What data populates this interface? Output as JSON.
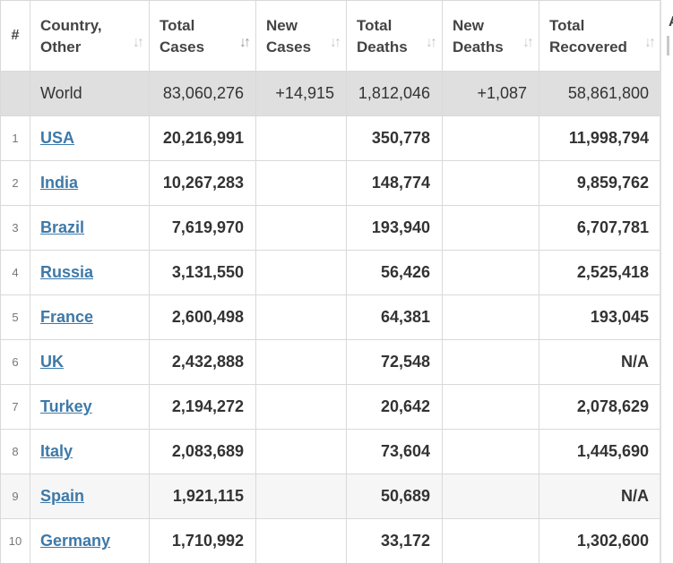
{
  "headers": {
    "num": "#",
    "country": [
      "Country,",
      "Other"
    ],
    "total_cases": [
      "Total",
      "Cases"
    ],
    "new_cases": [
      "New",
      "Cases"
    ],
    "total_deaths": [
      "Total",
      "Deaths"
    ],
    "new_deaths": [
      "New",
      "Deaths"
    ],
    "total_recovered": [
      "Total",
      "Recovered"
    ],
    "next_col_initial": "A"
  },
  "sort_icons": {
    "inactive": "sort-arrows-icon",
    "active": "sort-desc-icon",
    "active_column": "total_cases"
  },
  "world": {
    "country": "World",
    "total_cases": "83,060,276",
    "new_cases": "+14,915",
    "total_deaths": "1,812,046",
    "new_deaths": "+1,087",
    "total_recovered": "58,861,800"
  },
  "rows": [
    {
      "num": "1",
      "country": "USA",
      "total_cases": "20,216,991",
      "new_cases": "",
      "total_deaths": "350,778",
      "new_deaths": "",
      "total_recovered": "11,998,794"
    },
    {
      "num": "2",
      "country": "India",
      "total_cases": "10,267,283",
      "new_cases": "",
      "total_deaths": "148,774",
      "new_deaths": "",
      "total_recovered": "9,859,762"
    },
    {
      "num": "3",
      "country": "Brazil",
      "total_cases": "7,619,970",
      "new_cases": "",
      "total_deaths": "193,940",
      "new_deaths": "",
      "total_recovered": "6,707,781"
    },
    {
      "num": "4",
      "country": "Russia",
      "total_cases": "3,131,550",
      "new_cases": "",
      "total_deaths": "56,426",
      "new_deaths": "",
      "total_recovered": "2,525,418"
    },
    {
      "num": "5",
      "country": "France",
      "total_cases": "2,600,498",
      "new_cases": "",
      "total_deaths": "64,381",
      "new_deaths": "",
      "total_recovered": "193,045"
    },
    {
      "num": "6",
      "country": "UK",
      "total_cases": "2,432,888",
      "new_cases": "",
      "total_deaths": "72,548",
      "new_deaths": "",
      "total_recovered": "N/A"
    },
    {
      "num": "7",
      "country": "Turkey",
      "total_cases": "2,194,272",
      "new_cases": "",
      "total_deaths": "20,642",
      "new_deaths": "",
      "total_recovered": "2,078,629"
    },
    {
      "num": "8",
      "country": "Italy",
      "total_cases": "2,083,689",
      "new_cases": "",
      "total_deaths": "73,604",
      "new_deaths": "",
      "total_recovered": "1,445,690"
    },
    {
      "num": "9",
      "country": "Spain",
      "total_cases": "1,921,115",
      "new_cases": "",
      "total_deaths": "50,689",
      "new_deaths": "",
      "total_recovered": "N/A"
    },
    {
      "num": "10",
      "country": "Germany",
      "total_cases": "1,710,992",
      "new_cases": "",
      "total_deaths": "33,172",
      "new_deaths": "",
      "total_recovered": "1,302,600"
    }
  ],
  "colors": {
    "link": "#3e79a8",
    "world_row_bg": "#dfdfdf",
    "border": "#d9d9d9"
  }
}
